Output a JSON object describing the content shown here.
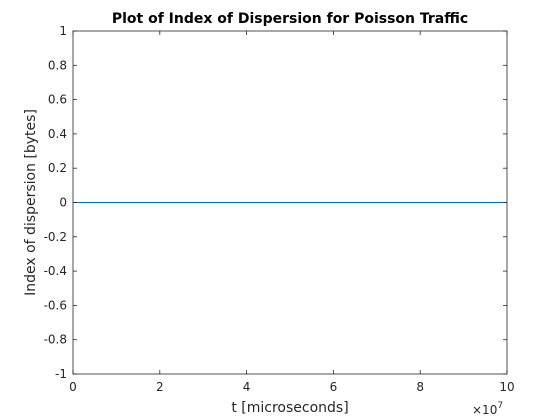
{
  "chart_data": {
    "type": "line",
    "title": "Plot of Index of Dispersion for Poisson Traffic",
    "xlabel": "t [microseconds]",
    "ylabel": "Index of dispersion [bytes]",
    "x_exponent_base": "×10",
    "x_exponent_power": "7",
    "xlim": [
      0,
      10
    ],
    "ylim": [
      -1,
      1
    ],
    "xticks": [
      0,
      2,
      4,
      6,
      8,
      10
    ],
    "xtick_labels": [
      "0",
      "2",
      "4",
      "6",
      "8",
      "10"
    ],
    "yticks": [
      -1,
      -0.8,
      -0.6,
      -0.4,
      -0.2,
      0,
      0.2,
      0.4,
      0.6,
      0.8,
      1
    ],
    "ytick_labels": [
      "-1",
      "-0.8",
      "-0.6",
      "-0.4",
      "-0.2",
      "0",
      "0.2",
      "0.4",
      "0.6",
      "0.8",
      "1"
    ],
    "grid": false,
    "series": [
      {
        "x": [
          0,
          10
        ],
        "y": [
          0,
          0
        ],
        "color": "#0072bd"
      }
    ]
  }
}
